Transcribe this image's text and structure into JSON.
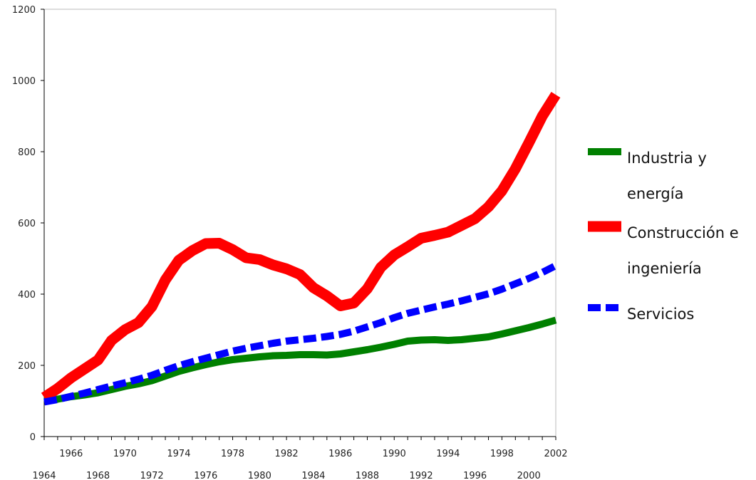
{
  "chart_data": {
    "type": "line",
    "x_label": "",
    "y_label": "",
    "ylim": [
      0,
      1200
    ],
    "xlim": [
      1964,
      2002
    ],
    "y_ticks": [
      0,
      200,
      400,
      600,
      800,
      1000,
      1200
    ],
    "x_ticks_bottom_row": [
      1964,
      1968,
      1972,
      1976,
      1980,
      1984,
      1988,
      1992,
      1996,
      2000
    ],
    "x_ticks_top_row": [
      1966,
      1970,
      1974,
      1978,
      1982,
      1986,
      1990,
      1994,
      1998,
      2002
    ],
    "grid": false,
    "legend_position": "right",
    "legend": [
      {
        "lines": [
          "Industria y",
          "energía"
        ]
      },
      {
        "lines": [
          "Construcción e",
          "ingeniería"
        ]
      },
      {
        "lines": [
          "Servicios"
        ]
      }
    ],
    "x": [
      1964,
      1965,
      1966,
      1967,
      1968,
      1969,
      1970,
      1971,
      1972,
      1973,
      1974,
      1975,
      1976,
      1977,
      1978,
      1979,
      1980,
      1981,
      1982,
      1983,
      1984,
      1985,
      1986,
      1987,
      1988,
      1989,
      1990,
      1991,
      1992,
      1993,
      1994,
      1995,
      1996,
      1997,
      1998,
      1999,
      2000,
      2001,
      2002
    ],
    "series": [
      {
        "name": "Industria y energía",
        "color": "#008000",
        "style": "solid",
        "values": [
          100,
          105,
          112,
          117,
          123,
          132,
          141,
          148,
          157,
          170,
          183,
          193,
          202,
          210,
          216,
          220,
          224,
          227,
          228,
          230,
          230,
          229,
          232,
          238,
          244,
          251,
          259,
          268,
          271,
          272,
          270,
          272,
          276,
          280,
          288,
          297,
          306,
          316,
          327
        ]
      },
      {
        "name": "Construcción e ingeniería",
        "color": "#ff0000",
        "style": "solid",
        "values": [
          110,
          135,
          165,
          190,
          215,
          270,
          300,
          320,
          365,
          440,
          495,
          522,
          542,
          543,
          525,
          502,
          497,
          482,
          471,
          455,
          418,
          395,
          367,
          375,
          415,
          475,
          510,
          533,
          557,
          565,
          574,
          593,
          612,
          645,
          690,
          752,
          825,
          900,
          960
        ]
      },
      {
        "name": "Servicios",
        "color": "#0000ff",
        "style": "dashed",
        "values": [
          97,
          104,
          113,
          122,
          132,
          142,
          151,
          161,
          172,
          186,
          199,
          210,
          220,
          230,
          240,
          248,
          255,
          262,
          268,
          272,
          276,
          281,
          287,
          296,
          308,
          320,
          334,
          346,
          355,
          364,
          372,
          381,
          391,
          401,
          414,
          429,
          444,
          461,
          480
        ]
      }
    ]
  }
}
